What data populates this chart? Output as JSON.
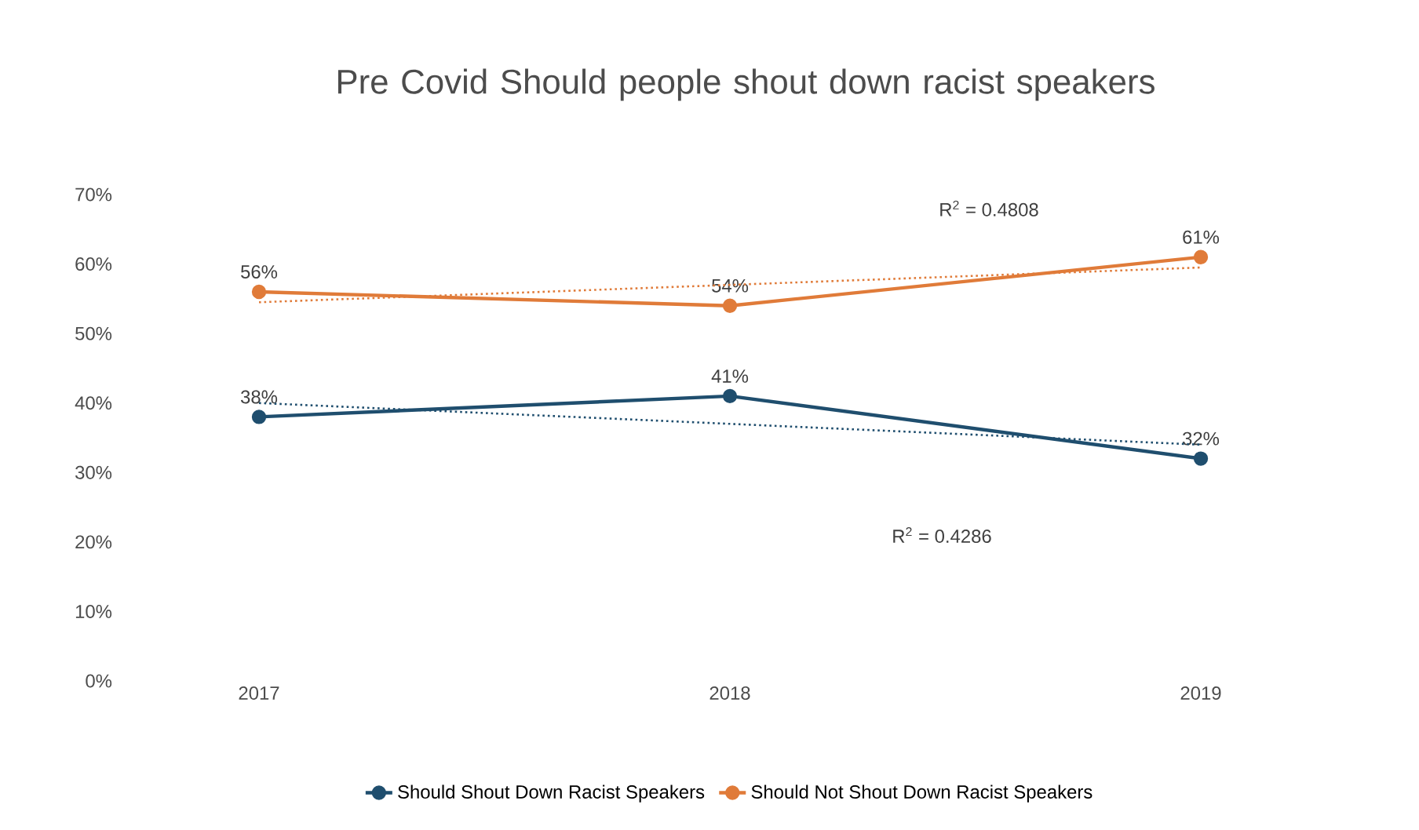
{
  "chart_data": {
    "type": "line",
    "title": "Pre Covid Should people shout down racist speakers",
    "categories": [
      "2017",
      "2018",
      "2019"
    ],
    "series": [
      {
        "name": "Should Shout Down Racist Speakers",
        "color": "#1f4e6e",
        "values": [
          38,
          41,
          32
        ],
        "value_labels": [
          "38%",
          "41%",
          "32%"
        ]
      },
      {
        "name": "Should Not Shout Down Racist Speakers",
        "color": "#e07b39",
        "values": [
          56,
          54,
          61
        ],
        "value_labels": [
          "56%",
          "54%",
          "61%"
        ]
      },
      {
        "type": "line",
        "color": "#1f4e6e",
        "values": [
          40,
          37,
          34
        ],
        "line_style": "dotted",
        "marker": "none"
      },
      {
        "type": "line",
        "color": "#e07b39",
        "values": [
          54.5,
          57,
          59.5
        ],
        "line_style": "dotted",
        "marker": "none"
      }
    ],
    "annotations": [
      "R$^{2}$ = 0.4808",
      "R$^{2}$ = 0.4286"
    ],
    "ylim": [
      0,
      70
    ],
    "yticks": [
      {
        "value": 0,
        "label": "0%"
      },
      {
        "value": 10,
        "label": "10%"
      },
      {
        "value": 20,
        "label": "20%"
      },
      {
        "value": 30,
        "label": "30%"
      },
      {
        "value": 40,
        "label": "40%"
      },
      {
        "value": 50,
        "label": "50%"
      },
      {
        "value": 60,
        "label": "60%"
      },
      {
        "value": 70,
        "label": "70%"
      }
    ],
    "legend": "bottom",
    "marker": "circle",
    "line_style": "solid",
    "grid": false
  }
}
